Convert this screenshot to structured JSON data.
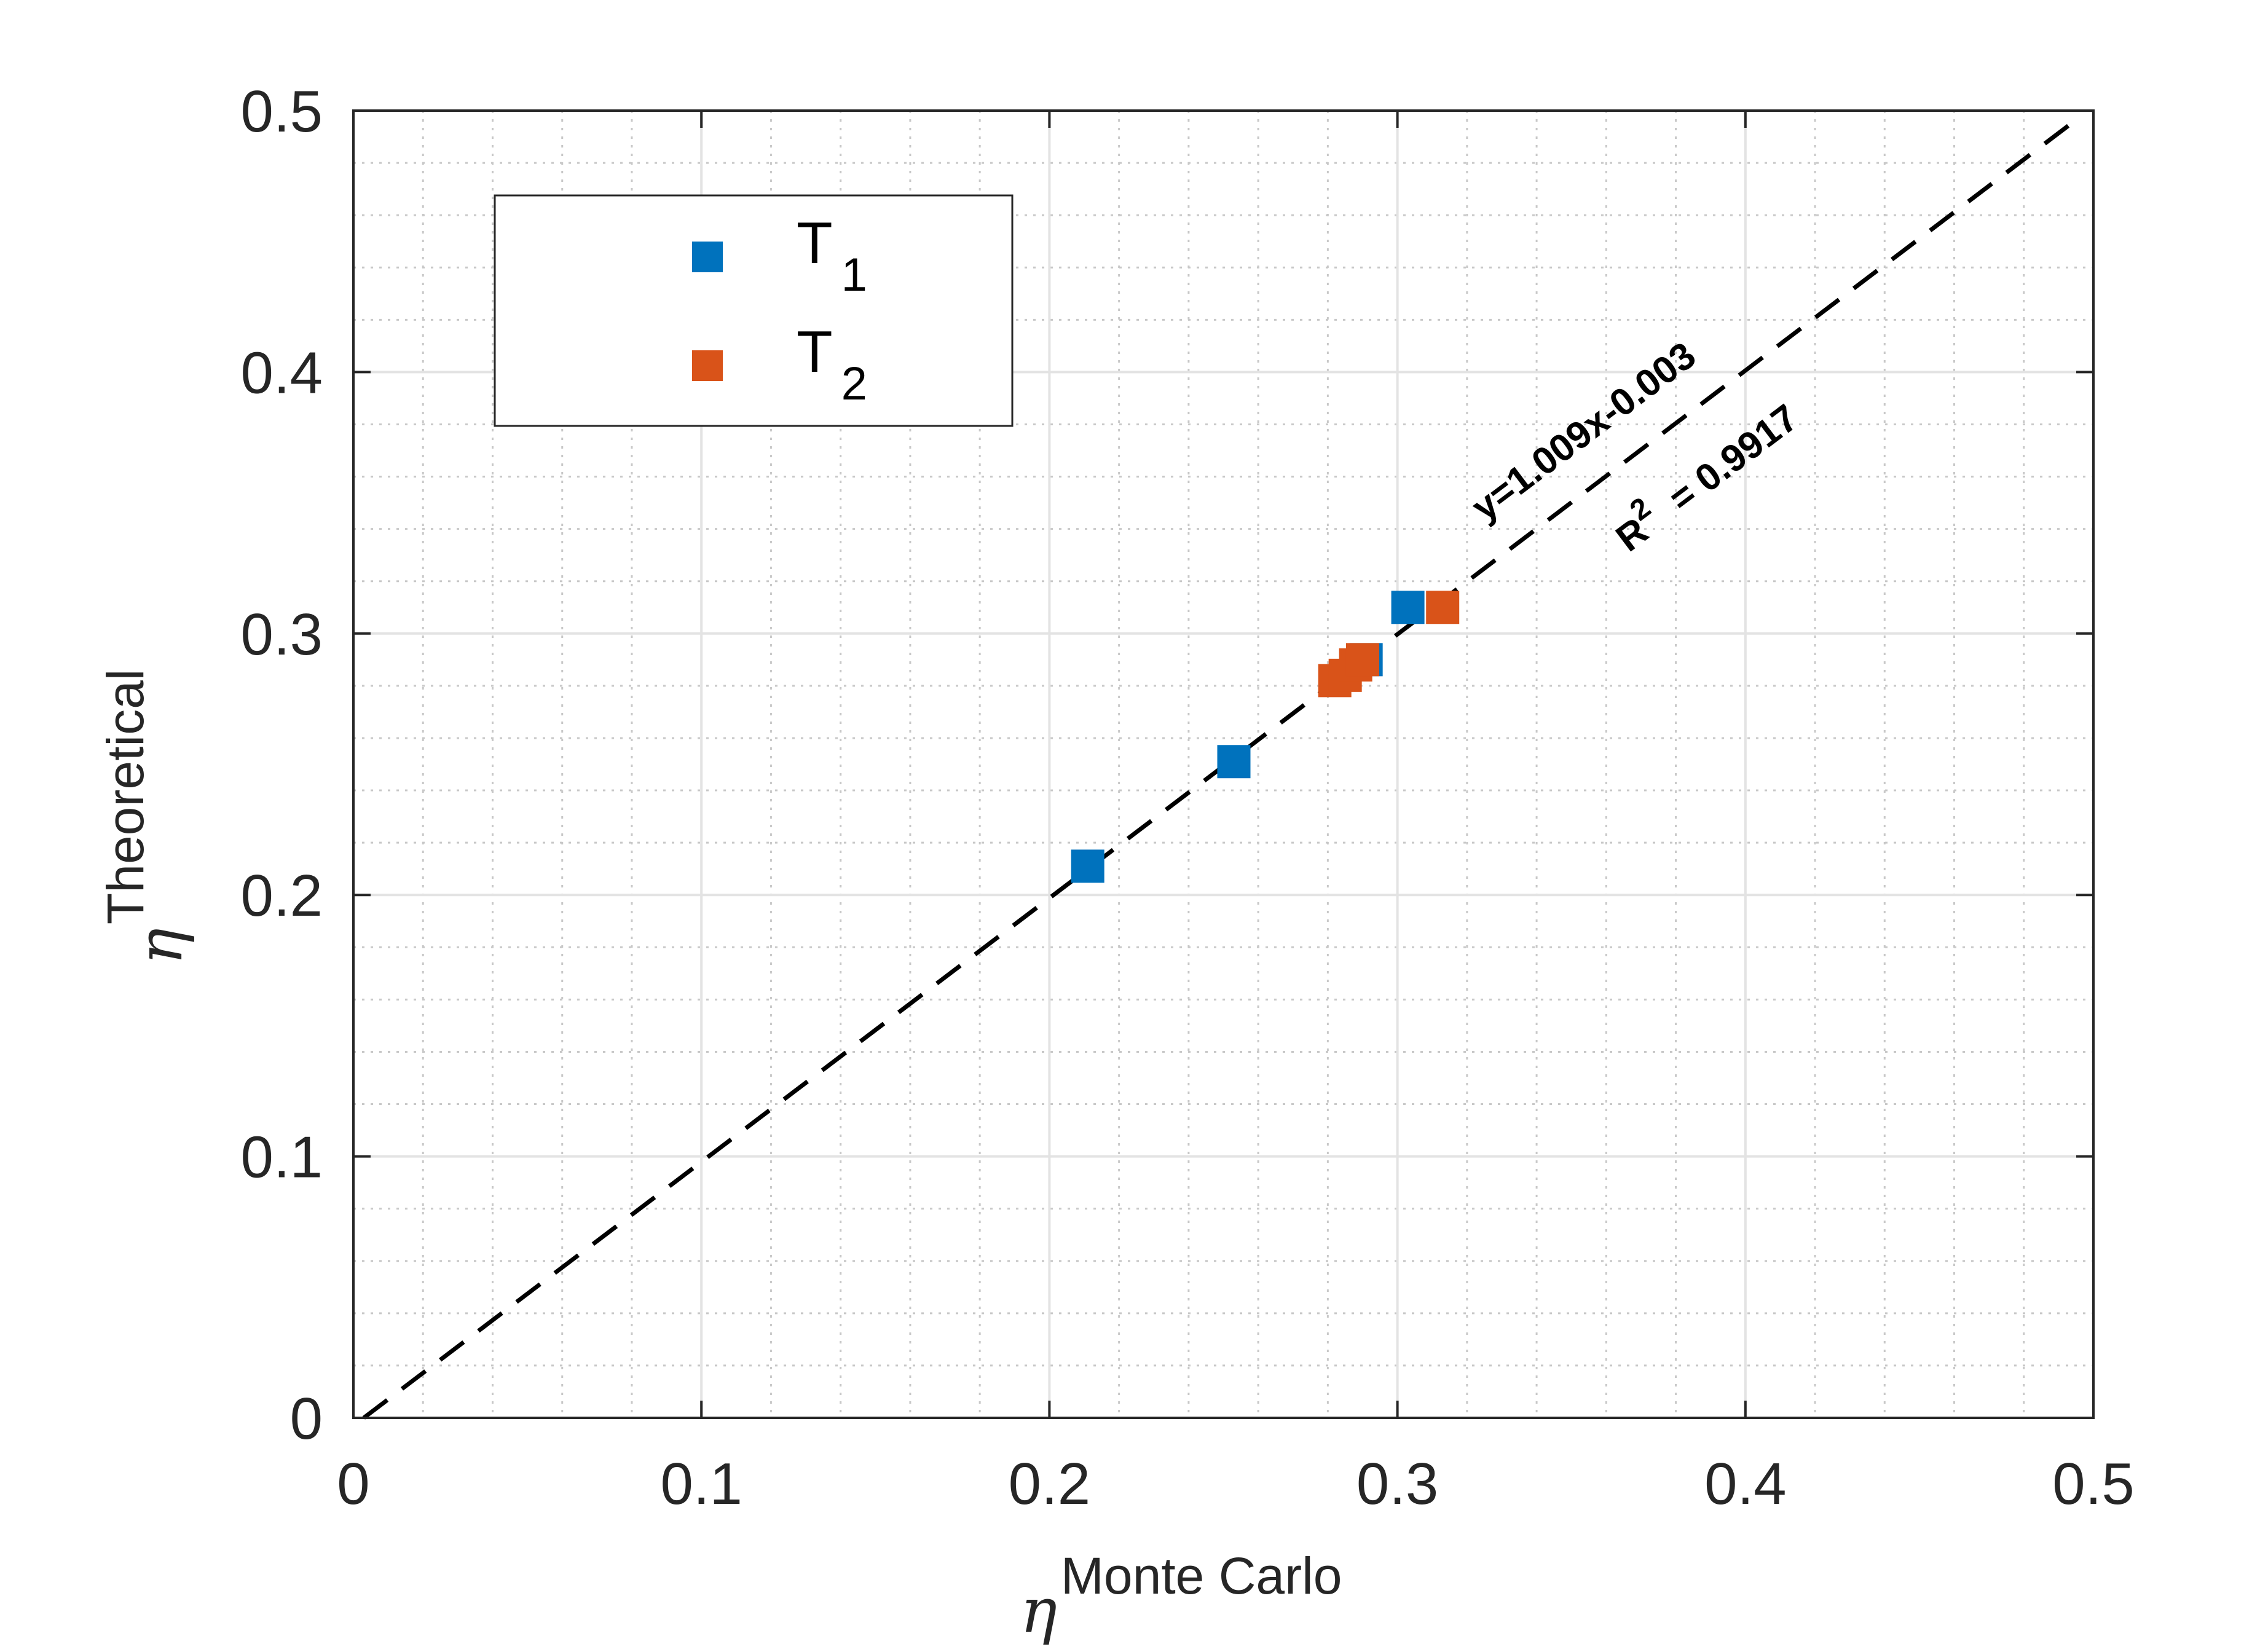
{
  "chart_data": {
    "type": "scatter",
    "xlabel": {
      "symbol": "η",
      "superscript": "Monte Carlo"
    },
    "ylabel": {
      "symbol": "η",
      "superscript": "Theoretical"
    },
    "xlim": [
      0,
      0.5
    ],
    "ylim": [
      0,
      0.5
    ],
    "xticks": [
      "0",
      "0.1",
      "0.2",
      "0.3",
      "0.4",
      "0.5"
    ],
    "yticks": [
      "0",
      "0.1",
      "0.2",
      "0.3",
      "0.4",
      "0.5"
    ],
    "grid": true,
    "minor_grid": true,
    "legend_position": "top-left",
    "series": [
      {
        "name": "T1",
        "legend": {
          "base": "T",
          "sub": "1"
        },
        "color": "#0072BD",
        "marker": "square",
        "points": [
          [
            0.211,
            0.211
          ],
          [
            0.253,
            0.251
          ],
          [
            0.291,
            0.29
          ],
          [
            0.303,
            0.31
          ]
        ]
      },
      {
        "name": "T2",
        "legend": {
          "base": "T",
          "sub": "2"
        },
        "color": "#D95319",
        "marker": "square",
        "points": [
          [
            0.282,
            0.282
          ],
          [
            0.285,
            0.284
          ],
          [
            0.288,
            0.288
          ],
          [
            0.29,
            0.29
          ],
          [
            0.313,
            0.31
          ]
        ]
      }
    ],
    "fit_line": {
      "slope": 1.009,
      "intercept": -0.003,
      "style": "dashed",
      "color": "#000000"
    },
    "annotations": {
      "equation": "y=1.009x-0.003",
      "r2": {
        "base": "R",
        "sup": "2",
        "value": "= 0.9917"
      }
    }
  }
}
